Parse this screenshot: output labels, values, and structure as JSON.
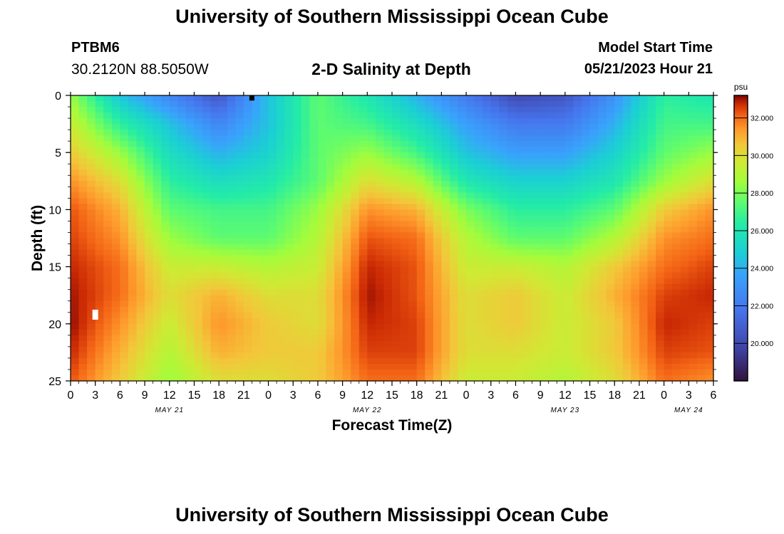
{
  "header": {
    "title": "University of Southern Mississippi Ocean Cube",
    "station_id": "PTBM6",
    "station_coords": "30.2120N  88.5050W",
    "subtitle": "2-D Salinity at Depth",
    "start_label": "Model Start Time",
    "start_value": "05/21/2023 Hour 21"
  },
  "footer": {
    "title": "University of Southern Mississippi Ocean Cube"
  },
  "chart_data": {
    "type": "heatmap",
    "title": "2-D Salinity at Depth",
    "xlabel": "Forecast Time(Z)",
    "ylabel": "Depth (ft)",
    "x_range_hours_from_start": [
      0,
      78
    ],
    "y_range_ft": [
      0,
      25
    ],
    "x_tick_labels": [
      "0",
      "3",
      "6",
      "9",
      "12",
      "15",
      "18",
      "21",
      "0",
      "3",
      "6",
      "9",
      "12",
      "15",
      "18",
      "21",
      "0",
      "3",
      "6",
      "9",
      "12",
      "15",
      "18",
      "21",
      "0",
      "3",
      "6"
    ],
    "y_tick_values": [
      0,
      5,
      10,
      15,
      20,
      25
    ],
    "date_labels": [
      {
        "label": "MAY 21",
        "hour": 12
      },
      {
        "label": "MAY 22",
        "hour": 36
      },
      {
        "label": "MAY 23",
        "hour": 60
      },
      {
        "label": "MAY 24",
        "hour": 75
      }
    ],
    "colorbar": {
      "unit": "psu",
      "range": [
        18.0,
        33.2
      ],
      "tick_labels": [
        "32.000",
        "30.000",
        "28.000",
        "26.000",
        "24.000",
        "22.000",
        "20.000"
      ],
      "tick_values": [
        32,
        30,
        28,
        26,
        24,
        22,
        20
      ]
    },
    "grid_columns_hours": [
      0,
      6,
      12,
      18,
      24,
      30,
      36,
      42,
      48,
      54,
      60,
      66,
      72,
      78
    ],
    "grid_rows_depth_ft": [
      0,
      2.5,
      5,
      7.5,
      10,
      12.5,
      15,
      17.5,
      20,
      22.5,
      25
    ],
    "values_psu": [
      [
        28.5,
        24.5,
        22.5,
        20.5,
        24.5,
        27.5,
        26.0,
        24.0,
        22.0,
        20.0,
        20.5,
        23.0,
        26.5,
        26.0
      ],
      [
        29.5,
        26.5,
        24.5,
        22.5,
        24.5,
        27.5,
        27.0,
        25.5,
        23.5,
        22.0,
        22.0,
        24.0,
        27.0,
        27.0
      ],
      [
        30.5,
        28.5,
        25.5,
        24.0,
        25.0,
        27.5,
        28.5,
        27.0,
        24.5,
        23.5,
        23.5,
        25.0,
        27.5,
        28.5
      ],
      [
        31.5,
        30.0,
        26.5,
        25.5,
        26.0,
        27.5,
        30.0,
        29.0,
        26.0,
        25.0,
        25.0,
        26.0,
        28.5,
        30.0
      ],
      [
        32.3,
        31.0,
        27.5,
        27.0,
        27.0,
        28.5,
        31.5,
        31.0,
        28.0,
        26.5,
        26.5,
        27.5,
        30.5,
        31.5
      ],
      [
        32.5,
        31.5,
        28.5,
        27.5,
        27.5,
        29.0,
        32.3,
        32.0,
        29.0,
        27.5,
        27.5,
        29.0,
        31.5,
        32.0
      ],
      [
        32.8,
        32.0,
        29.5,
        29.5,
        29.0,
        29.5,
        32.8,
        32.3,
        29.5,
        29.5,
        29.0,
        30.5,
        32.0,
        32.5
      ],
      [
        33.0,
        32.0,
        30.0,
        31.0,
        30.0,
        30.0,
        33.0,
        32.3,
        30.0,
        30.5,
        29.5,
        31.0,
        32.5,
        32.8
      ],
      [
        33.1,
        31.5,
        29.5,
        31.5,
        30.5,
        30.0,
        32.8,
        32.5,
        30.0,
        30.5,
        29.5,
        30.5,
        32.8,
        32.5
      ],
      [
        32.8,
        31.0,
        29.0,
        31.0,
        30.5,
        30.5,
        32.5,
        32.5,
        30.0,
        30.0,
        29.5,
        30.5,
        32.5,
        32.3
      ],
      [
        32.3,
        30.5,
        28.5,
        30.0,
        30.0,
        30.5,
        32.0,
        32.0,
        29.5,
        29.5,
        29.0,
        30.0,
        32.0,
        31.5
      ]
    ],
    "missing_cells": [
      {
        "hour": 3,
        "depth_ft": 19.2
      }
    ],
    "marker_cells": [
      {
        "hour": 22,
        "depth_ft": 0.2
      }
    ]
  }
}
